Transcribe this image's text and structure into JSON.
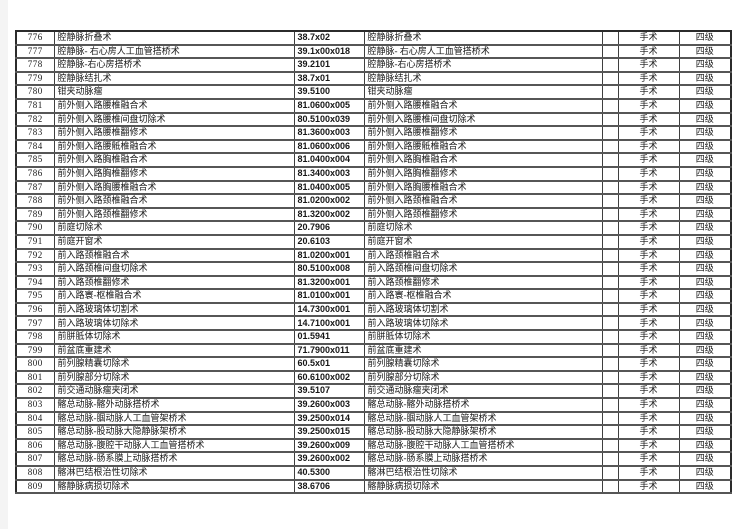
{
  "document": {
    "type": "surgical-procedure-grading-table-page",
    "category_label": "手术",
    "level_label": "四级"
  },
  "table": {
    "rows": [
      {
        "no": "776",
        "name": "腔静脉折叠术",
        "code": "38.7x02",
        "name2": "腔静脉折叠术",
        "blank": "",
        "category": "手术",
        "level": "四级"
      },
      {
        "no": "777",
        "name": "腔静脉- 右心房人工血管搭桥术",
        "code": "39.1x00x018",
        "name2": "腔静脉- 右心房人工血管搭桥术",
        "blank": "",
        "category": "手术",
        "level": "四级"
      },
      {
        "no": "778",
        "name": "腔静脉-右心房搭桥术",
        "code": "39.2101",
        "name2": "腔静脉-右心房搭桥术",
        "blank": "",
        "category": "手术",
        "level": "四级"
      },
      {
        "no": "779",
        "name": "腔静脉结扎术",
        "code": "38.7x01",
        "name2": "腔静脉结扎术",
        "blank": "",
        "category": "手术",
        "level": "四级"
      },
      {
        "no": "780",
        "name": "钳夹动脉瘤",
        "code": "39.5100",
        "name2": "钳夹动脉瘤",
        "blank": "",
        "category": "手术",
        "level": "四级"
      },
      {
        "no": "781",
        "name": "前外侧入路腰椎融合术",
        "code": "81.0600x005",
        "name2": "前外侧入路腰椎融合术",
        "blank": "",
        "category": "手术",
        "level": "四级"
      },
      {
        "no": "782",
        "name": "前外侧入路腰椎间盘切除术",
        "code": "80.5100x039",
        "name2": "前外侧入路腰椎间盘切除术",
        "blank": "",
        "category": "手术",
        "level": "四级"
      },
      {
        "no": "783",
        "name": "前外侧入路腰椎翻修术",
        "code": "81.3600x003",
        "name2": "前外侧入路腰椎翻修术",
        "blank": "",
        "category": "手术",
        "level": "四级"
      },
      {
        "no": "784",
        "name": "前外侧入路腰骶椎融合术",
        "code": "81.0600x006",
        "name2": "前外侧入路腰骶椎融合术",
        "blank": "",
        "category": "手术",
        "level": "四级"
      },
      {
        "no": "785",
        "name": "前外侧入路胸椎融合术",
        "code": "81.0400x004",
        "name2": "前外侧入路胸椎融合术",
        "blank": "",
        "category": "手术",
        "level": "四级"
      },
      {
        "no": "786",
        "name": "前外侧入路胸椎翻修术",
        "code": "81.3400x003",
        "name2": "前外侧入路胸椎翻修术",
        "blank": "",
        "category": "手术",
        "level": "四级"
      },
      {
        "no": "787",
        "name": "前外侧入路胸腰椎融合术",
        "code": "81.0400x005",
        "name2": "前外侧入路胸腰椎融合术",
        "blank": "",
        "category": "手术",
        "level": "四级"
      },
      {
        "no": "788",
        "name": "前外侧入路颈椎融合术",
        "code": "81.0200x002",
        "name2": "前外侧入路颈椎融合术",
        "blank": "",
        "category": "手术",
        "level": "四级"
      },
      {
        "no": "789",
        "name": "前外侧入路颈椎翻修术",
        "code": "81.3200x002",
        "name2": "前外侧入路颈椎翻修术",
        "blank": "",
        "category": "手术",
        "level": "四级"
      },
      {
        "no": "790",
        "name": "前庭切除术",
        "code": "20.7906",
        "name2": "前庭切除术",
        "blank": "",
        "category": "手术",
        "level": "四级"
      },
      {
        "no": "791",
        "name": "前庭开窗术",
        "code": "20.6103",
        "name2": "前庭开窗术",
        "blank": "",
        "category": "手术",
        "level": "四级"
      },
      {
        "no": "792",
        "name": "前入路颈椎融合术",
        "code": "81.0200x001",
        "name2": "前入路颈椎融合术",
        "blank": "",
        "category": "手术",
        "level": "四级"
      },
      {
        "no": "793",
        "name": "前入路颈椎间盘切除术",
        "code": "80.5100x008",
        "name2": "前入路颈椎间盘切除术",
        "blank": "",
        "category": "手术",
        "level": "四级"
      },
      {
        "no": "794",
        "name": "前入路颈椎翻修术",
        "code": "81.3200x001",
        "name2": "前入路颈椎翻修术",
        "blank": "",
        "category": "手术",
        "level": "四级"
      },
      {
        "no": "795",
        "name": "前入路寰-枢椎融合术",
        "code": "81.0100x001",
        "name2": "前入路寰-枢椎融合术",
        "blank": "",
        "category": "手术",
        "level": "四级"
      },
      {
        "no": "796",
        "name": "前入路玻璃体切割术",
        "code": "14.7300x001",
        "name2": "前入路玻璃体切割术",
        "blank": "",
        "category": "手术",
        "level": "四级"
      },
      {
        "no": "797",
        "name": "前入路玻璃体切除术",
        "code": "14.7100x001",
        "name2": "前入路玻璃体切除术",
        "blank": "",
        "category": "手术",
        "level": "四级"
      },
      {
        "no": "798",
        "name": "前胼胝体切除术",
        "code": "01.5941",
        "name2": "前胼胝体切除术",
        "blank": "",
        "category": "手术",
        "level": "四级"
      },
      {
        "no": "799",
        "name": "前盆底重建术",
        "code": "71.7900x011",
        "name2": "前盆底重建术",
        "blank": "",
        "category": "手术",
        "level": "四级"
      },
      {
        "no": "800",
        "name": "前列腺精囊切除术",
        "code": "60.5x01",
        "name2": "前列腺精囊切除术",
        "blank": "",
        "category": "手术",
        "level": "四级"
      },
      {
        "no": "801",
        "name": "前列腺部分切除术",
        "code": "60.6100x002",
        "name2": "前列腺部分切除术",
        "blank": "",
        "category": "手术",
        "level": "四级"
      },
      {
        "no": "802",
        "name": "前交通动脉瘤夹闭术",
        "code": "39.5107",
        "name2": "前交通动脉瘤夹闭术",
        "blank": "",
        "category": "手术",
        "level": "四级"
      },
      {
        "no": "803",
        "name": "髂总动脉-髂外动脉搭桥术",
        "code": "39.2600x003",
        "name2": "髂总动脉-髂外动脉搭桥术",
        "blank": "",
        "category": "手术",
        "level": "四级"
      },
      {
        "no": "804",
        "name": "髂总动脉-腘动脉人工血管架桥术",
        "code": "39.2500x014",
        "name2": "髂总动脉-腘动脉人工血管架桥术",
        "blank": "",
        "category": "手术",
        "level": "四级"
      },
      {
        "no": "805",
        "name": "髂总动脉-股动脉大隐静脉架桥术",
        "code": "39.2500x015",
        "name2": "髂总动脉-股动脉大隐静脉架桥术",
        "blank": "",
        "category": "手术",
        "level": "四级"
      },
      {
        "no": "806",
        "name": "髂总动脉-腹腔干动脉人工血管搭桥术",
        "code": "39.2600x009",
        "name2": "髂总动脉-腹腔干动脉人工血管搭桥术",
        "blank": "",
        "category": "手术",
        "level": "四级"
      },
      {
        "no": "807",
        "name": "髂总动脉-肠系膜上动脉搭桥术",
        "code": "39.2600x002",
        "name2": "髂总动脉-肠系膜上动脉搭桥术",
        "blank": "",
        "category": "手术",
        "level": "四级"
      },
      {
        "no": "808",
        "name": "髂淋巴结根治性切除术",
        "code": "40.5300",
        "name2": "髂淋巴结根治性切除术",
        "blank": "",
        "category": "手术",
        "level": "四级"
      },
      {
        "no": "809",
        "name": "髂静脉病损切除术",
        "code": "38.6706",
        "name2": "髂静脉病损切除术",
        "blank": "",
        "category": "手术",
        "level": "四级"
      }
    ]
  }
}
